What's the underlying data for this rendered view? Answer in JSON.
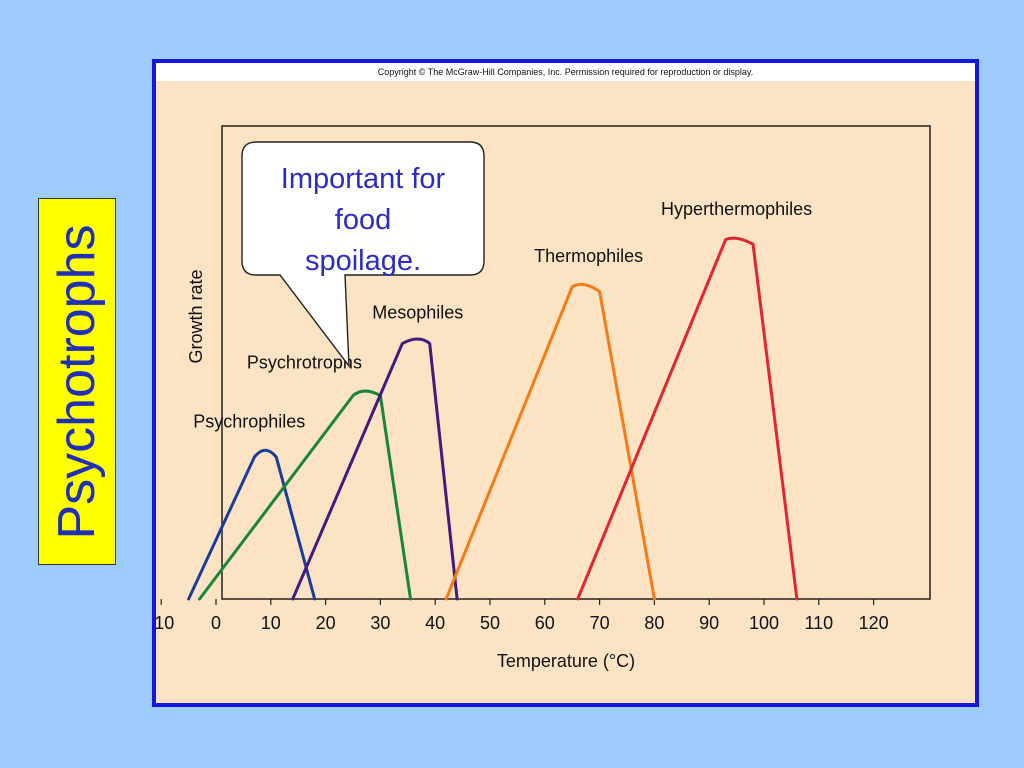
{
  "side_label": "Psychotrophs",
  "copyright": "Copyright © The McGraw-Hill Companies, Inc. Permission required for reproduction or display.",
  "callout": {
    "lines": [
      "Important for",
      "food",
      "spoilage."
    ]
  },
  "colors": {
    "background": "#9ccbfc",
    "frame_border": "#1515e0",
    "panel": "#fce3c4",
    "side_label_bg": "#ffff00",
    "side_label_text": "#1f2fb8",
    "callout_text": "#2b2bc8"
  },
  "chart_data": {
    "type": "line",
    "xlabel": "Temperature (°C)",
    "ylabel": "Growth rate",
    "xlim": [
      -10,
      120
    ],
    "ylim": [
      0,
      1
    ],
    "x_ticks": [
      -10,
      0,
      10,
      20,
      30,
      40,
      50,
      60,
      70,
      80,
      90,
      100,
      110,
      120
    ],
    "x_tick_labels": [
      "-10",
      "0",
      "10",
      "20",
      "30",
      "40",
      "50",
      "60",
      "70",
      "80",
      "90",
      "100",
      "110",
      "120"
    ],
    "y_ticks_shown": false,
    "grid": false,
    "series": [
      {
        "name": "Psychrophiles",
        "color": "#1a3c9c",
        "x": [
          -5,
          7,
          9,
          11,
          18
        ],
        "y": [
          0,
          0.3,
          0.325,
          0.3,
          0
        ]
      },
      {
        "name": "Psychrotrophs",
        "color": "#18853a",
        "x": [
          -3,
          25,
          27,
          30,
          35.5
        ],
        "y": [
          0,
          0.43,
          0.445,
          0.43,
          0
        ]
      },
      {
        "name": "Mesophiles",
        "color": "#45197e",
        "x": [
          14,
          34,
          37,
          39,
          44
        ],
        "y": [
          0,
          0.54,
          0.555,
          0.54,
          0
        ]
      },
      {
        "name": "Thermophiles",
        "color": "#f57a18",
        "x": [
          42,
          65,
          67,
          70,
          80
        ],
        "y": [
          0,
          0.66,
          0.67,
          0.65,
          0
        ]
      },
      {
        "name": "Hyperthermophiles",
        "color": "#e0262e",
        "x": [
          66,
          93,
          95,
          98,
          106
        ],
        "y": [
          0,
          0.76,
          0.765,
          0.75,
          0
        ]
      }
    ]
  }
}
